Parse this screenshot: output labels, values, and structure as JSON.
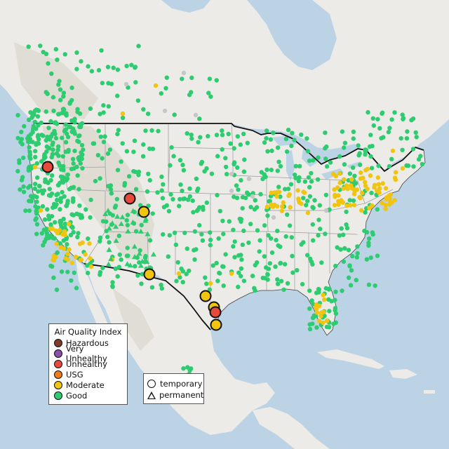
{
  "legend": {
    "title": "Air Quality Index",
    "categories": [
      {
        "label": "Hazardous",
        "color": "#7e3a2a"
      },
      {
        "label": "Very Unhealthy",
        "color": "#8a4fa8"
      },
      {
        "label": "Unhealthy",
        "color": "#e8493a"
      },
      {
        "label": "USG",
        "color": "#ef7b1a"
      },
      {
        "label": "Moderate",
        "color": "#f1c40f"
      },
      {
        "label": "Good",
        "color": "#2ecc71"
      }
    ]
  },
  "shape_legend": {
    "temporary": "temporary",
    "permanent": "permanent"
  },
  "colors": {
    "water": "#bcd3e6",
    "land": "#ecebe7",
    "mountains": "#ddd9d2",
    "border": "#111111",
    "state_lines": "#9a9a9a",
    "no_data": "#c6c6c6"
  }
}
